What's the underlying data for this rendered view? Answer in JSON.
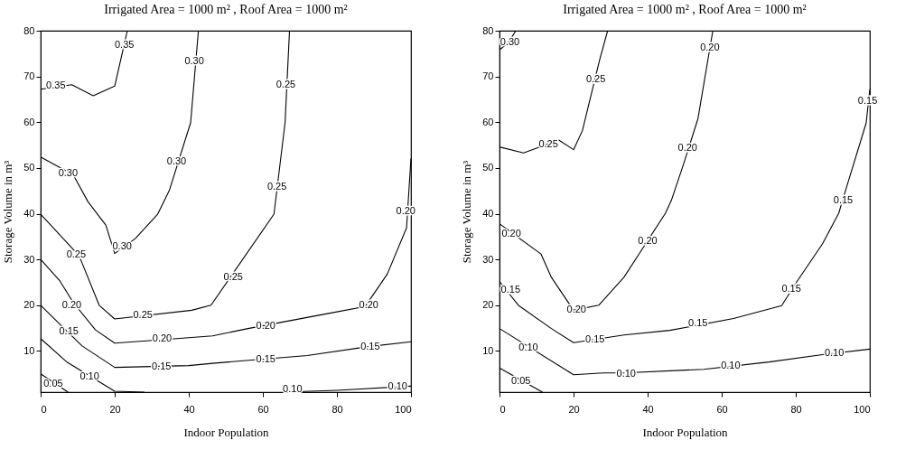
{
  "chart_data": [
    {
      "type": "line",
      "title": "Irrigated Area = 1000 m² , Roof Area = 1000 m²",
      "xlabel": "Indoor Population",
      "ylabel": "Storage Volume in m³",
      "xlim": [
        0,
        100
      ],
      "ylim": [
        1,
        80
      ],
      "xticks": [
        0,
        20,
        40,
        60,
        80,
        100
      ],
      "yticks": [
        10,
        20,
        30,
        40,
        50,
        60,
        70,
        80
      ],
      "grid": false,
      "line_style": "solid",
      "series": [
        {
          "color": "#000000",
          "x": [
            0,
            8.4,
            14.2,
            20,
            22.4,
            23.4
          ],
          "values": [
            67.2,
            68.2,
            65.8,
            67.9,
            76.4,
            80
          ]
        },
        {
          "color": "#000000",
          "x": [
            0,
            8.8,
            12.8,
            17.6,
            20,
            25.6,
            31.6,
            34.8,
            40.5,
            42.6
          ],
          "values": [
            52.4,
            48.5,
            42.6,
            37.5,
            31.3,
            34.6,
            39.9,
            45.2,
            59.9,
            80
          ]
        },
        {
          "color": "#000000",
          "x": [
            0,
            10.4,
            15.8,
            20,
            40.8,
            46,
            63,
            66,
            67.2
          ],
          "values": [
            39.9,
            30.8,
            20,
            17,
            18.9,
            20,
            39.9,
            59.9,
            80
          ]
        },
        {
          "color": "#000000",
          "x": [
            0,
            5.2,
            8.8,
            14.8,
            20,
            33.6,
            46.4,
            56,
            78.4,
            87.6,
            93.6,
            98.8,
            100
          ],
          "values": [
            30,
            25.3,
            20.6,
            14.6,
            11.7,
            12.5,
            13.3,
            14.9,
            18.3,
            19.7,
            26.8,
            36.9,
            52.1
          ]
        },
        {
          "color": "#000000",
          "x": [
            0,
            6,
            11.2,
            20,
            40,
            46.4,
            72,
            88,
            100
          ],
          "values": [
            20,
            15.2,
            11.1,
            6.4,
            6.8,
            7.3,
            9,
            10.9,
            12
          ]
        },
        {
          "color": "#000000",
          "x": [
            0,
            7.2,
            20,
            28
          ],
          "values": [
            12.7,
            7.5,
            1.2,
            1
          ]
        },
        {
          "color": "#000000",
          "x": [
            65.6,
            80,
            100
          ],
          "values": [
            1,
            1.4,
            2.3
          ]
        },
        {
          "color": "#000000",
          "x": [
            0,
            7.4
          ],
          "values": [
            5,
            1
          ]
        }
      ],
      "annotations": [
        {
          "text": "0.35",
          "x": 22.6,
          "y": 76.9
        },
        {
          "text": "0.35",
          "x": 4.1,
          "y": 68
        },
        {
          "text": "0.30",
          "x": 41.5,
          "y": 73.2
        },
        {
          "text": "0.30",
          "x": 36.7,
          "y": 51.3
        },
        {
          "text": "0.30",
          "x": 7.4,
          "y": 48.8
        },
        {
          "text": "0.30",
          "x": 22,
          "y": 32.8
        },
        {
          "text": "0.25",
          "x": 66.2,
          "y": 68.2
        },
        {
          "text": "0.25",
          "x": 63.8,
          "y": 45.9
        },
        {
          "text": "0.25",
          "x": 9.6,
          "y": 31.1
        },
        {
          "text": "0.25",
          "x": 52,
          "y": 26.1
        },
        {
          "text": "0.25",
          "x": 27.6,
          "y": 17.8
        },
        {
          "text": "0.20",
          "x": 98.6,
          "y": 40.5
        },
        {
          "text": "0.20",
          "x": 8.4,
          "y": 20
        },
        {
          "text": "0.20",
          "x": 88.6,
          "y": 20
        },
        {
          "text": "0.20",
          "x": 32.8,
          "y": 12.6
        },
        {
          "text": "0.20",
          "x": 60.8,
          "y": 15.5
        },
        {
          "text": "0.15",
          "x": 7.6,
          "y": 14.2
        },
        {
          "text": "0.15",
          "x": 32.6,
          "y": 6.5
        },
        {
          "text": "0.15",
          "x": 60.8,
          "y": 8.2
        },
        {
          "text": "0.15",
          "x": 89,
          "y": 10.9
        },
        {
          "text": "0.10",
          "x": 13.2,
          "y": 4.4
        },
        {
          "text": "0.10",
          "x": 68,
          "y": 1.5
        },
        {
          "text": "0.10",
          "x": 96.4,
          "y": 2.2
        },
        {
          "text": "0.05",
          "x": 3.4,
          "y": 2.8
        }
      ]
    },
    {
      "type": "line",
      "title": "Irrigated Area = 1000 m² , Roof Area = 1000 m²",
      "xlabel": "Indoor Population",
      "ylabel": "Storage Volume in m³",
      "xlim": [
        0,
        100
      ],
      "ylim": [
        1,
        80
      ],
      "xticks": [
        0,
        20,
        40,
        60,
        80,
        100
      ],
      "yticks": [
        10,
        20,
        30,
        40,
        50,
        60,
        70,
        80
      ],
      "grid": false,
      "line_style": "solid",
      "series": [
        {
          "color": "#000000",
          "x": [
            0,
            2.5,
            4.4
          ],
          "values": [
            75.8,
            77.5,
            80
          ]
        },
        {
          "color": "#000000",
          "x": [
            0,
            6.5,
            16,
            20,
            22.4,
            27,
            29.2
          ],
          "values": [
            54.6,
            53.3,
            56.1,
            54,
            58.2,
            73.5,
            80
          ]
        },
        {
          "color": "#000000",
          "x": [
            0,
            11.2,
            14,
            20,
            26.8,
            33.6,
            39.2,
            44.8,
            46.4,
            49.6,
            53.6,
            57.6
          ],
          "values": [
            37.8,
            31.2,
            26.1,
            18.9,
            20,
            26.1,
            33.1,
            40.1,
            42.9,
            50.6,
            60.8,
            80
          ]
        },
        {
          "color": "#000000",
          "x": [
            0,
            5.2,
            14,
            20,
            33.6,
            46,
            63.2,
            76.2,
            80,
            87.2,
            91.6,
            93.6,
            99,
            100
          ],
          "values": [
            25.2,
            19.9,
            14.9,
            11.8,
            13.5,
            14.5,
            17.1,
            19.9,
            24.8,
            33.4,
            40.1,
            45.5,
            59.8,
            67.2
          ]
        },
        {
          "color": "#000000",
          "x": [
            0,
            20,
            28,
            33.6,
            55.2,
            72.8,
            87.2,
            100
          ],
          "values": [
            14.9,
            4.8,
            5.2,
            5.2,
            6,
            7.6,
            9.2,
            10.4
          ]
        },
        {
          "color": "#000000",
          "x": [
            0,
            11.6
          ],
          "values": [
            6.3,
            1
          ]
        }
      ],
      "annotations": [
        {
          "text": "0.30",
          "x": 2.8,
          "y": 77.5
        },
        {
          "text": "0.25",
          "x": 26,
          "y": 69.4
        },
        {
          "text": "0.25",
          "x": 13.2,
          "y": 55.2
        },
        {
          "text": "0.20",
          "x": 56.8,
          "y": 76.2
        },
        {
          "text": "0.20",
          "x": 50.8,
          "y": 54.4
        },
        {
          "text": "0.15",
          "x": 99.4,
          "y": 64.5
        },
        {
          "text": "0.15",
          "x": 92.8,
          "y": 42.9
        },
        {
          "text": "0.20",
          "x": 3.2,
          "y": 35.6
        },
        {
          "text": "0.20",
          "x": 40,
          "y": 34
        },
        {
          "text": "0.20",
          "x": 20.8,
          "y": 19
        },
        {
          "text": "0.15",
          "x": 3,
          "y": 23.3
        },
        {
          "text": "0.15",
          "x": 78.8,
          "y": 23.6
        },
        {
          "text": "0.15",
          "x": 53.6,
          "y": 16
        },
        {
          "text": "0.15",
          "x": 25.8,
          "y": 12.4
        },
        {
          "text": "0.10",
          "x": 7.8,
          "y": 10.6
        },
        {
          "text": "0.10",
          "x": 34.2,
          "y": 5
        },
        {
          "text": "0.10",
          "x": 62.4,
          "y": 6.8
        },
        {
          "text": "0.10",
          "x": 90.4,
          "y": 9.5
        },
        {
          "text": "0.05",
          "x": 5.8,
          "y": 3.4
        }
      ]
    }
  ]
}
